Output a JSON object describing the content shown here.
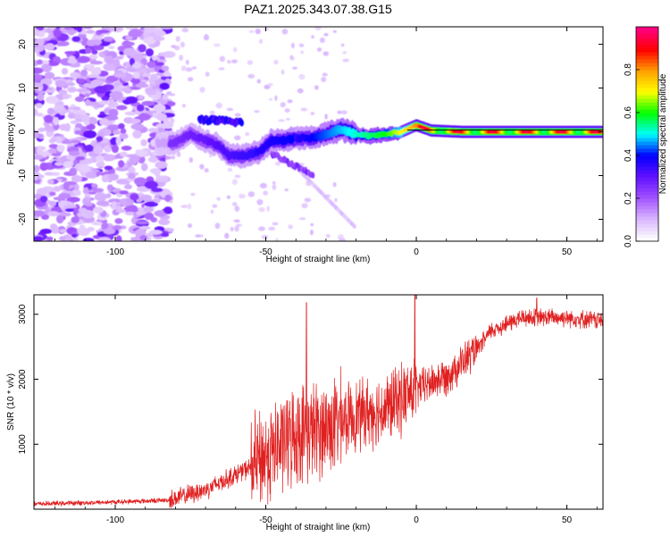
{
  "title": "PAZ1.2025.343.07.38.G15",
  "chart_data": [
    {
      "type": "heatmap",
      "xlabel": "Height of straight line (km)",
      "ylabel": "Frequency (Hz)",
      "xlim": [
        -127,
        62
      ],
      "ylim": [
        -25,
        24
      ],
      "xticks": [
        -100,
        -50,
        0,
        50
      ],
      "yticks": [
        -20,
        -10,
        0,
        10,
        20
      ],
      "xtick_labels": [
        "-100",
        "-50",
        "0",
        "50"
      ],
      "ytick_labels": [
        "-20",
        "-10",
        "0",
        "10",
        "20"
      ],
      "colorbar": {
        "label": "Normalized spectral amplitude",
        "range": [
          0,
          1
        ],
        "ticks": [
          0.0,
          0.2,
          0.4,
          0.6,
          0.8
        ],
        "tick_labels": [
          "0.0",
          "0.2",
          "0.4",
          "0.6",
          "0.8"
        ],
        "colors": [
          "#ffffff",
          "#d8b4ff",
          "#a050ff",
          "#6010ff",
          "#0000ff",
          "#00ffff",
          "#00ff00",
          "#ffff00",
          "#ffa000",
          "#ff0000",
          "#ff0080"
        ]
      },
      "ridge": [
        {
          "x": -86,
          "y": -2.5
        },
        {
          "x": -80,
          "y": -2.5
        },
        {
          "x": -75,
          "y": -0.5
        },
        {
          "x": -70,
          "y": -2
        },
        {
          "x": -66,
          "y": -3
        },
        {
          "x": -62,
          "y": -5.5
        },
        {
          "x": -57,
          "y": -5.5
        },
        {
          "x": -52,
          "y": -4.5
        },
        {
          "x": -48,
          "y": -2
        },
        {
          "x": -44,
          "y": -2
        },
        {
          "x": -40,
          "y": -1.5
        },
        {
          "x": -35,
          "y": -1.5
        },
        {
          "x": -30,
          "y": -0.5
        },
        {
          "x": -25,
          "y": 0.5
        },
        {
          "x": -20,
          "y": -0.5
        },
        {
          "x": -15,
          "y": -1
        },
        {
          "x": -10,
          "y": -0.5
        },
        {
          "x": -5,
          "y": 0
        },
        {
          "x": 0,
          "y": 1.5
        },
        {
          "x": 5,
          "y": 0.3
        },
        {
          "x": 15,
          "y": 0
        },
        {
          "x": 30,
          "y": 0
        },
        {
          "x": 45,
          "y": 0
        },
        {
          "x": 62,
          "y": 0
        }
      ]
    },
    {
      "type": "line",
      "xlabel": "Height of straight line (km)",
      "ylabel": "SNR (10 * v/v)",
      "xlim": [
        -127,
        62
      ],
      "ylim": [
        0,
        3300
      ],
      "xticks": [
        -100,
        -50,
        0,
        50
      ],
      "yticks": [
        1000,
        2000,
        3000
      ],
      "xtick_labels": [
        "-100",
        "-50",
        "0",
        "50"
      ],
      "ytick_labels": [
        "1000",
        "2000",
        "3000"
      ],
      "color": "#e02020",
      "trend": {
        "x": [
          -127,
          -100,
          -82,
          -70,
          -55,
          -40,
          -30,
          -20,
          -10,
          0,
          10,
          20,
          25,
          35,
          50,
          62
        ],
        "y": [
          80,
          110,
          140,
          300,
          650,
          1150,
          1250,
          1450,
          1550,
          1850,
          2050,
          2450,
          2750,
          2950,
          2950,
          2900
        ]
      },
      "spikes": [
        {
          "x": -36.5,
          "y": 3180
        },
        {
          "x": -0.5,
          "y": 3300
        },
        {
          "x": 40,
          "y": 3250
        }
      ]
    }
  ]
}
